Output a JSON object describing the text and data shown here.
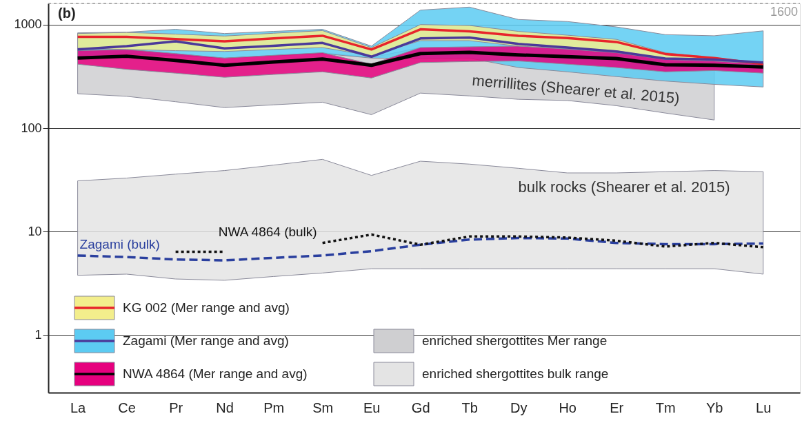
{
  "chart_data": {
    "type": "line",
    "categories": [
      "La",
      "Ce",
      "Pr",
      "Nd",
      "Pm",
      "Sm",
      "Eu",
      "Gd",
      "Tb",
      "Dy",
      "Ho",
      "Er",
      "Tm",
      "Yb",
      "Lu"
    ],
    "ylim": [
      0.28,
      1600
    ],
    "yticks": [
      1,
      10,
      100,
      1000
    ],
    "log": true,
    "grid": "y",
    "legend": "bottom left",
    "series": [
      {
        "name": "enriched shergottites Mer range",
        "type": "area",
        "color": "#cfcfd1",
        "values": [
          null,
          null,
          null,
          null,
          null,
          null,
          null,
          null,
          null,
          null,
          null,
          null,
          null,
          null,
          null
        ],
        "lower": [
          215,
          203,
          180,
          158,
          168,
          178,
          135,
          218,
          205,
          190,
          185,
          165,
          140,
          120,
          null
        ],
        "upper": [
          560,
          575,
          525,
          475,
          505,
          535,
          480,
          600,
          610,
          620,
          580,
          535,
          460,
          445,
          null
        ]
      },
      {
        "name": "enriched shergottites bulk range",
        "type": "area",
        "color": "#e4e4e4",
        "values": [
          null,
          null,
          null,
          null,
          null,
          null,
          null,
          null,
          null,
          null,
          null,
          null,
          null,
          null,
          null
        ],
        "lower": [
          3.8,
          3.9,
          3.5,
          3.4,
          3.7,
          4.0,
          4.4,
          4.4,
          4.4,
          4.4,
          4.4,
          4.4,
          4.4,
          4.4,
          3.9
        ],
        "upper": [
          31,
          33,
          36,
          39,
          44,
          50,
          35,
          48,
          45,
          41,
          37,
          37,
          38,
          39,
          38
        ]
      },
      {
        "type": "area",
        "color": "#f3ee8c",
        "values": [
          null,
          null,
          null,
          null,
          null,
          null,
          null,
          null,
          null,
          null,
          null,
          null,
          null,
          null,
          null
        ],
        "lower": [
          590,
          575,
          560,
          550,
          575,
          600,
          500,
          700,
          700,
          620,
          590,
          560,
          470,
          460,
          410
        ],
        "upper": [
          820,
          840,
          810,
          775,
          825,
          875,
          600,
          1000,
          980,
          860,
          790,
          720,
          535,
          480,
          425
        ]
      },
      {
        "name": "KG 002 (Mer range and avg)",
        "color": "#e8242b",
        "values": [
          760,
          760,
          725,
          690,
          735,
          780,
          575,
          900,
          860,
          780,
          740,
          680,
          520,
          475,
          415
        ]
      },
      {
        "type": "area",
        "color": "#5ccbf2",
        "values": [
          null,
          null,
          null,
          null,
          null,
          null,
          null,
          null,
          null,
          null,
          null,
          null,
          null,
          null,
          null
        ],
        "lower": [
          475,
          520,
          500,
          475,
          500,
          525,
          475,
          470,
          475,
          385,
          350,
          315,
          285,
          265,
          250
        ],
        "upper": [
          832,
          845,
          900,
          820,
          860,
          900,
          620,
          1380,
          1475,
          1120,
          1070,
          950,
          800,
          780,
          870
        ]
      },
      {
        "name": "Zagami (Mer range and avg)",
        "color": "#4b3a9a",
        "values": [
          575,
          620,
          690,
          590,
          625,
          665,
          490,
          735,
          750,
          650,
          600,
          550,
          470,
          460,
          430
        ]
      },
      {
        "type": "area",
        "color": "#e6007e",
        "values": [
          null,
          null,
          null,
          null,
          null,
          null,
          null,
          null,
          null,
          null,
          null,
          null,
          null,
          null,
          null
        ],
        "lower": [
          415,
          370,
          340,
          310,
          330,
          350,
          305,
          430,
          440,
          445,
          415,
          385,
          350,
          360,
          340
        ],
        "upper": [
          560,
          575,
          525,
          475,
          505,
          535,
          415,
          600,
          610,
          620,
          580,
          535,
          460,
          445,
          415
        ]
      },
      {
        "name": "NWA 4864 (Mer range and avg)",
        "color": "#000000",
        "values": [
          475,
          495,
          450,
          405,
          435,
          465,
          405,
          525,
          540,
          510,
          490,
          470,
          410,
          405,
          390
        ]
      },
      {
        "name": "Zagami (bulk)",
        "color": "#2a3f9e",
        "line_style": "dashed",
        "values": [
          5.9,
          5.7,
          5.4,
          5.3,
          5.6,
          5.9,
          6.5,
          7.5,
          8.4,
          8.7,
          8.6,
          7.8,
          7.6,
          7.6,
          7.7
        ]
      },
      {
        "name": "NWA 4864 (bulk)",
        "color": "#111111",
        "line_style": "dotted",
        "values": [
          null,
          null,
          6.4,
          6.4,
          null,
          7.8,
          9.4,
          7.5,
          9.0,
          9.0,
          8.8,
          8.2,
          7.2,
          7.8,
          7.1
        ]
      }
    ],
    "ref_lines": [
      {
        "axis": "y",
        "value": 1600,
        "label": "1600",
        "color": "#999999",
        "line_style": "dotted"
      }
    ],
    "annotations": [
      "(b)",
      "merrillites (Shearer et al. 2015)",
      "bulk rocks (Shearer et al. 2015)"
    ]
  }
}
